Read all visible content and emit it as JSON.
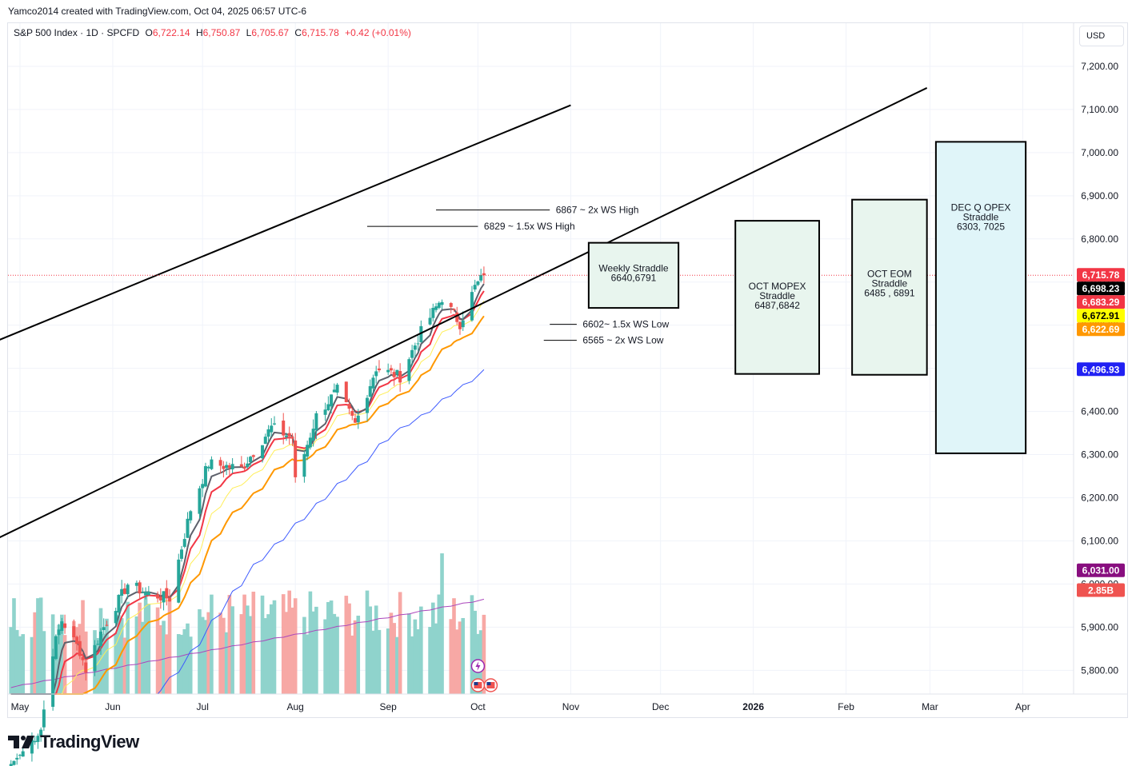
{
  "header": {
    "caption": "Yamco2014 created with TradingView.com, Oct 04, 2025 06:57 UTC-6"
  },
  "legend": {
    "symbol": "S&P 500 Index · 1D · SPCFD",
    "open_label": "O",
    "open": "6,722.14",
    "high_label": "H",
    "high": "6,750.87",
    "low_label": "L",
    "low": "6,705.67",
    "close_label": "C",
    "close": "6,715.78",
    "change": "+0.42 (+0.01%)"
  },
  "currency": {
    "label": "USD"
  },
  "footer": {
    "brand": "TradingView"
  },
  "colors": {
    "up": "#26a69a",
    "down": "#ef5350",
    "vol_up": "#8fd3cc",
    "vol_down": "#f7a8a5",
    "ema_dark": "#5d606b",
    "ema_red": "#f23645",
    "ema_yellow": "#ffee58",
    "ema_orange": "#ff9800",
    "sma_blue": "#3d5afe",
    "sma_purple": "#ab47bc",
    "box_green": "#e8f5ee",
    "box_blue": "#e0f5f9"
  },
  "chart_data": {
    "type": "candlestick",
    "y_axis": {
      "range": [
        5745,
        7300
      ],
      "ticks": [
        "5,800.00",
        "5,900.00",
        "6,000.00",
        "6,100.00",
        "6,200.00",
        "6,300.00",
        "6,400.00",
        "6,500.00",
        "6,600.00",
        "6,700.00",
        "6,800.00",
        "6,900.00",
        "7,000.00",
        "7,100.00",
        "7,200.00"
      ],
      "tick_values": [
        5800,
        5900,
        6000,
        6100,
        6200,
        6300,
        6400,
        6500,
        6600,
        6700,
        6800,
        6900,
        7000,
        7100,
        7200
      ]
    },
    "x_axis": {
      "labels": [
        {
          "text": "May",
          "date": "2025-05-01"
        },
        {
          "text": "Jun",
          "date": "2025-06-01"
        },
        {
          "text": "Jul",
          "date": "2025-07-01"
        },
        {
          "text": "Aug",
          "date": "2025-08-01"
        },
        {
          "text": "Sep",
          "date": "2025-09-01"
        },
        {
          "text": "Oct",
          "date": "2025-10-01"
        },
        {
          "text": "Nov",
          "date": "2025-11-01"
        },
        {
          "text": "Dec",
          "date": "2025-12-01"
        },
        {
          "text": "2026",
          "date": "2026-01-01"
        },
        {
          "text": "Feb",
          "date": "2026-02-01"
        },
        {
          "text": "Mar",
          "date": "2026-03-01"
        },
        {
          "text": "Apr",
          "date": "2026-04-01"
        }
      ]
    },
    "price_badges": [
      {
        "label": "6,715.78",
        "value": 6715.78,
        "color": "#f23645"
      },
      {
        "label": "6,698.23",
        "value": 6698.23,
        "color": "#000000"
      },
      {
        "label": "6,683.29",
        "value": 6683.29,
        "color": "#f23645"
      },
      {
        "label": "6,672.91",
        "value": 6672.91,
        "color": "#ffff00"
      },
      {
        "label": "6,622.69",
        "value": 6622.69,
        "color": "#ff9800"
      },
      {
        "label": "6,496.93",
        "value": 6496.93,
        "color": "#2121f3"
      },
      {
        "label": "6,031.00",
        "value": 6031.0,
        "color": "#880e7f"
      },
      {
        "label": "2.85B",
        "value": 5985,
        "color": "#ef5350"
      }
    ],
    "last_close": 6715.78,
    "ohlc_anchors": [
      {
        "date": "2025-05-01",
        "close": 5604
      },
      {
        "date": "2025-05-08",
        "close": 5664
      },
      {
        "date": "2025-05-12",
        "close": 5844
      },
      {
        "date": "2025-05-15",
        "close": 5916
      },
      {
        "date": "2025-05-21",
        "close": 5845
      },
      {
        "date": "2025-05-23",
        "close": 5802
      },
      {
        "date": "2025-05-28",
        "close": 5888
      },
      {
        "date": "2025-06-06",
        "close": 6000
      },
      {
        "date": "2025-06-13",
        "close": 5977
      },
      {
        "date": "2025-06-20",
        "close": 5967
      },
      {
        "date": "2025-06-27",
        "close": 6173
      },
      {
        "date": "2025-07-03",
        "close": 6279
      },
      {
        "date": "2025-07-14",
        "close": 6268
      },
      {
        "date": "2025-07-24",
        "close": 6363
      },
      {
        "date": "2025-07-31",
        "close": 6339
      },
      {
        "date": "2025-08-01",
        "close": 6238
      },
      {
        "date": "2025-08-08",
        "close": 6389
      },
      {
        "date": "2025-08-15",
        "close": 6449
      },
      {
        "date": "2025-08-21",
        "close": 6370
      },
      {
        "date": "2025-08-28",
        "close": 6501
      },
      {
        "date": "2025-09-05",
        "close": 6481
      },
      {
        "date": "2025-09-12",
        "close": 6584
      },
      {
        "date": "2025-09-19",
        "close": 6664
      },
      {
        "date": "2025-09-25",
        "close": 6604
      },
      {
        "date": "2025-09-30",
        "close": 6688
      },
      {
        "date": "2025-10-03",
        "close": 6715
      }
    ],
    "annotations": [
      {
        "text": "6867 ~ 2x WS High",
        "value": 6867
      },
      {
        "text": "6829 ~ 1.5x WS High",
        "value": 6829
      },
      {
        "text": "6602~ 1.5x WS Low",
        "value": 6602
      },
      {
        "text": "6565 ~ 2x WS Low",
        "value": 6565
      }
    ],
    "boxes": [
      {
        "lines": [
          "Weekly Straddle",
          "6640,6791"
        ],
        "low": 6640,
        "high": 6791,
        "start": "2025-11-07",
        "end": "2025-12-07"
      },
      {
        "lines": [
          "OCT MOPEX",
          "Straddle",
          "6487,6842"
        ],
        "low": 6487,
        "high": 6842,
        "start": "2025-12-26",
        "end": "2026-01-23"
      },
      {
        "lines": [
          "OCT EOM",
          "Straddle",
          "6485 , 6891"
        ],
        "low": 6485,
        "high": 6891,
        "start": "2026-02-03",
        "end": "2026-02-28"
      },
      {
        "lines": [
          "DEC Q OPEX",
          "Straddle",
          "6303, 7025"
        ],
        "low": 6303,
        "high": 7025,
        "start": "2026-03-03",
        "end": "2026-04-02"
      }
    ],
    "trendlines": [
      {
        "x1": "2025-04-01",
        "y1": 6500,
        "x2": "2025-11-01",
        "y2": 7110
      },
      {
        "x1": "2025-04-01",
        "y1": 6030,
        "x2": "2026-02-28",
        "y2": 7150
      }
    ],
    "grid": true
  }
}
